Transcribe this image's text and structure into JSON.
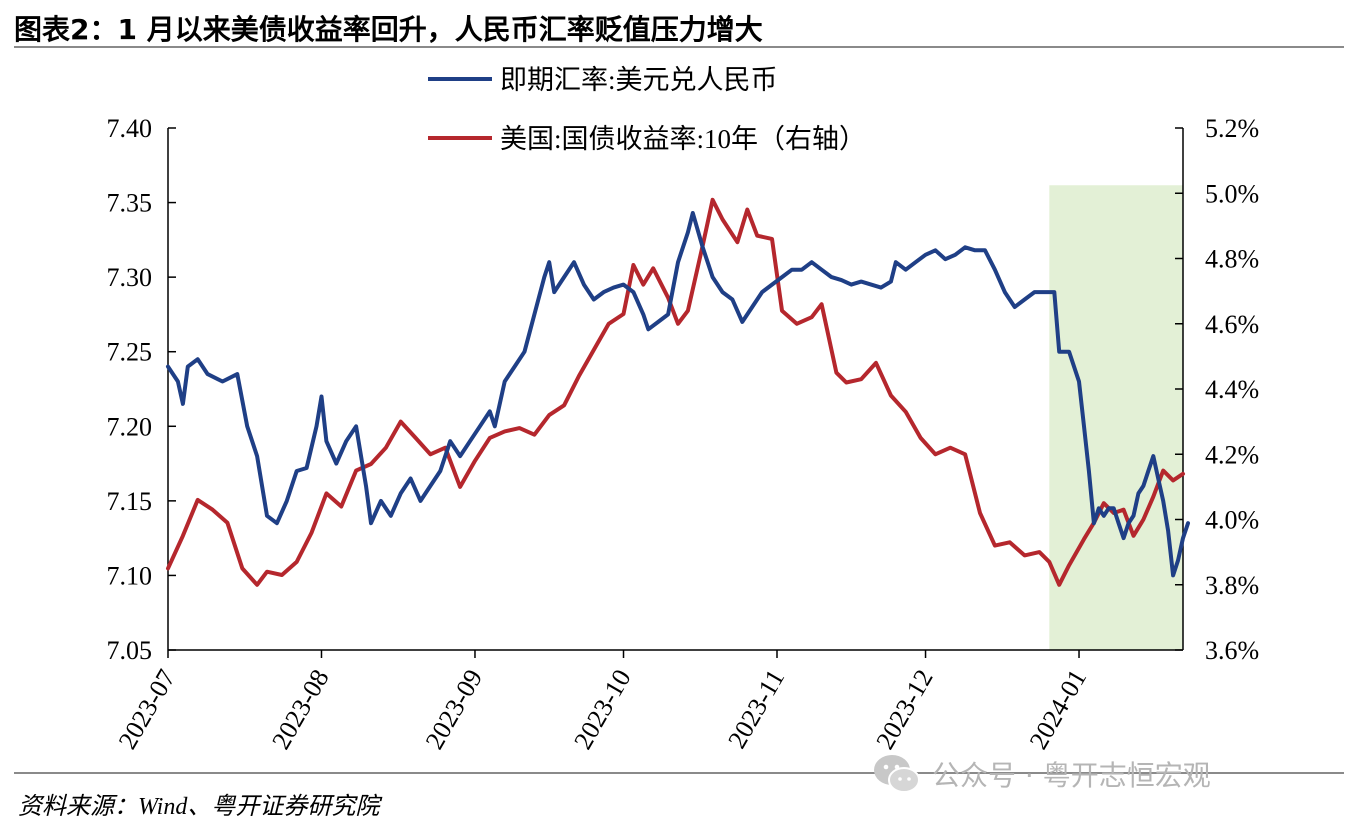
{
  "figure_title": "图表2：1 月以来美债收益率回升，人民币汇率贬值压力增大",
  "source_note": "资料来源：Wind、粤开证券研究院",
  "watermark": {
    "icon": "wechat-icon",
    "text": "公众号 · 粤开志恒宏观"
  },
  "colors": {
    "cny": "#1f3f86",
    "ust": "#b5272d",
    "highlight": "#e3f0d6",
    "axis": "#000000"
  },
  "chart_data": {
    "type": "line",
    "x_type": "date",
    "x_tick_labels": [
      "2023-07",
      "2023-08",
      "2023-09",
      "2023-10",
      "2023-11",
      "2023-12",
      "2024-01"
    ],
    "x_range": [
      "2023-07-01",
      "2024-01-22"
    ],
    "y_left": {
      "range": [
        7.05,
        7.4
      ],
      "ticks": [
        "7.05",
        "7.10",
        "7.15",
        "7.20",
        "7.25",
        "7.30",
        "7.35",
        "7.40"
      ]
    },
    "y_right": {
      "range": [
        3.6,
        5.2
      ],
      "unit": "%",
      "ticks": [
        "3.6%",
        "3.8%",
        "4.0%",
        "4.2%",
        "4.4%",
        "4.6%",
        "4.8%",
        "5.0%",
        "5.2%"
      ]
    },
    "highlight_range": [
      "2023-12-26",
      "2024-01-22"
    ],
    "legend": [
      "即期汇率:美元兑人民币",
      "美国:国债收益率:10年（右轴）"
    ],
    "series": [
      {
        "name": "即期汇率:美元兑人民币",
        "axis": "left",
        "points": [
          [
            "2023-07-01",
            7.24
          ],
          [
            "2023-07-03",
            7.23
          ],
          [
            "2023-07-04",
            7.215
          ],
          [
            "2023-07-05",
            7.24
          ],
          [
            "2023-07-07",
            7.245
          ],
          [
            "2023-07-09",
            7.235
          ],
          [
            "2023-07-12",
            7.23
          ],
          [
            "2023-07-15",
            7.235
          ],
          [
            "2023-07-17",
            7.2
          ],
          [
            "2023-07-19",
            7.18
          ],
          [
            "2023-07-21",
            7.14
          ],
          [
            "2023-07-23",
            7.135
          ],
          [
            "2023-07-25",
            7.15
          ],
          [
            "2023-07-27",
            7.17
          ],
          [
            "2023-07-29",
            7.172
          ],
          [
            "2023-07-31",
            7.2
          ],
          [
            "2023-08-01",
            7.22
          ],
          [
            "2023-08-02",
            7.19
          ],
          [
            "2023-08-04",
            7.175
          ],
          [
            "2023-08-06",
            7.19
          ],
          [
            "2023-08-08",
            7.2
          ],
          [
            "2023-08-10",
            7.16
          ],
          [
            "2023-08-11",
            7.135
          ],
          [
            "2023-08-13",
            7.15
          ],
          [
            "2023-08-15",
            7.14
          ],
          [
            "2023-08-17",
            7.155
          ],
          [
            "2023-08-19",
            7.165
          ],
          [
            "2023-08-21",
            7.15
          ],
          [
            "2023-08-23",
            7.16
          ],
          [
            "2023-08-25",
            7.17
          ],
          [
            "2023-08-27",
            7.19
          ],
          [
            "2023-08-29",
            7.18
          ],
          [
            "2023-08-31",
            7.19
          ],
          [
            "2023-09-02",
            7.2
          ],
          [
            "2023-09-04",
            7.21
          ],
          [
            "2023-09-05",
            7.2
          ],
          [
            "2023-09-07",
            7.23
          ],
          [
            "2023-09-09",
            7.24
          ],
          [
            "2023-09-11",
            7.25
          ],
          [
            "2023-09-13",
            7.275
          ],
          [
            "2023-09-15",
            7.3
          ],
          [
            "2023-09-16",
            7.31
          ],
          [
            "2023-09-17",
            7.29
          ],
          [
            "2023-09-19",
            7.3
          ],
          [
            "2023-09-21",
            7.31
          ],
          [
            "2023-09-23",
            7.295
          ],
          [
            "2023-09-25",
            7.285
          ],
          [
            "2023-09-27",
            7.29
          ],
          [
            "2023-09-29",
            7.293
          ],
          [
            "2023-10-01",
            7.295
          ],
          [
            "2023-10-03",
            7.29
          ],
          [
            "2023-10-05",
            7.275
          ],
          [
            "2023-10-06",
            7.265
          ],
          [
            "2023-10-08",
            7.27
          ],
          [
            "2023-10-10",
            7.275
          ],
          [
            "2023-10-12",
            7.31
          ],
          [
            "2023-10-14",
            7.33
          ],
          [
            "2023-10-15",
            7.343
          ],
          [
            "2023-10-17",
            7.32
          ],
          [
            "2023-10-19",
            7.3
          ],
          [
            "2023-10-21",
            7.29
          ],
          [
            "2023-10-23",
            7.285
          ],
          [
            "2023-10-25",
            7.27
          ],
          [
            "2023-10-27",
            7.28
          ],
          [
            "2023-10-29",
            7.29
          ],
          [
            "2023-10-31",
            7.295
          ],
          [
            "2023-11-02",
            7.3
          ],
          [
            "2023-11-04",
            7.305
          ],
          [
            "2023-11-06",
            7.305
          ],
          [
            "2023-11-08",
            7.31
          ],
          [
            "2023-11-10",
            7.305
          ],
          [
            "2023-11-12",
            7.3
          ],
          [
            "2023-11-14",
            7.298
          ],
          [
            "2023-11-16",
            7.295
          ],
          [
            "2023-11-18",
            7.297
          ],
          [
            "2023-11-20",
            7.295
          ],
          [
            "2023-11-22",
            7.293
          ],
          [
            "2023-11-24",
            7.297
          ],
          [
            "2023-11-25",
            7.31
          ],
          [
            "2023-11-27",
            7.305
          ],
          [
            "2023-11-29",
            7.31
          ],
          [
            "2023-12-01",
            7.315
          ],
          [
            "2023-12-03",
            7.318
          ],
          [
            "2023-12-05",
            7.312
          ],
          [
            "2023-12-07",
            7.315
          ],
          [
            "2023-12-09",
            7.32
          ],
          [
            "2023-12-11",
            7.318
          ],
          [
            "2023-12-13",
            7.318
          ],
          [
            "2023-12-15",
            7.305
          ],
          [
            "2023-12-17",
            7.29
          ],
          [
            "2023-12-19",
            7.28
          ],
          [
            "2023-12-21",
            7.285
          ],
          [
            "2023-12-23",
            7.29
          ],
          [
            "2023-12-25",
            7.29
          ],
          [
            "2023-12-27",
            7.29
          ],
          [
            "2023-12-28",
            7.25
          ],
          [
            "2023-12-30",
            7.25
          ],
          [
            "2024-01-01",
            7.23
          ],
          [
            "2024-01-02",
            7.2
          ],
          [
            "2024-01-03",
            7.17
          ],
          [
            "2024-01-04",
            7.135
          ],
          [
            "2024-01-05",
            7.145
          ],
          [
            "2024-01-06",
            7.14
          ],
          [
            "2024-01-07",
            7.145
          ],
          [
            "2024-01-08",
            7.145
          ],
          [
            "2024-01-09",
            7.135
          ],
          [
            "2024-01-10",
            7.125
          ],
          [
            "2024-01-11",
            7.135
          ],
          [
            "2024-01-12",
            7.14
          ],
          [
            "2024-01-13",
            7.155
          ],
          [
            "2024-01-14",
            7.16
          ],
          [
            "2024-01-15",
            7.17
          ],
          [
            "2024-01-16",
            7.18
          ],
          [
            "2024-01-17",
            7.165
          ],
          [
            "2024-01-18",
            7.15
          ],
          [
            "2024-01-19",
            7.13
          ],
          [
            "2024-01-20",
            7.1
          ],
          [
            "2024-01-21",
            7.11
          ],
          [
            "2024-01-22",
            7.125
          ],
          [
            "2024-01-23",
            7.135
          ]
        ]
      },
      {
        "name": "美国:国债收益率:10年（右轴）",
        "axis": "right",
        "points": [
          [
            "2023-07-01",
            3.85
          ],
          [
            "2023-07-04",
            3.95
          ],
          [
            "2023-07-07",
            4.06
          ],
          [
            "2023-07-10",
            4.03
          ],
          [
            "2023-07-13",
            3.99
          ],
          [
            "2023-07-16",
            3.85
          ],
          [
            "2023-07-19",
            3.8
          ],
          [
            "2023-07-21",
            3.84
          ],
          [
            "2023-07-24",
            3.83
          ],
          [
            "2023-07-27",
            3.87
          ],
          [
            "2023-07-30",
            3.96
          ],
          [
            "2023-08-02",
            4.08
          ],
          [
            "2023-08-05",
            4.04
          ],
          [
            "2023-08-08",
            4.15
          ],
          [
            "2023-08-11",
            4.17
          ],
          [
            "2023-08-14",
            4.22
          ],
          [
            "2023-08-17",
            4.3
          ],
          [
            "2023-08-20",
            4.25
          ],
          [
            "2023-08-23",
            4.2
          ],
          [
            "2023-08-26",
            4.22
          ],
          [
            "2023-08-29",
            4.1
          ],
          [
            "2023-09-01",
            4.18
          ],
          [
            "2023-09-04",
            4.25
          ],
          [
            "2023-09-07",
            4.27
          ],
          [
            "2023-09-10",
            4.28
          ],
          [
            "2023-09-13",
            4.26
          ],
          [
            "2023-09-16",
            4.32
          ],
          [
            "2023-09-19",
            4.35
          ],
          [
            "2023-09-22",
            4.44
          ],
          [
            "2023-09-25",
            4.52
          ],
          [
            "2023-09-28",
            4.6
          ],
          [
            "2023-10-01",
            4.63
          ],
          [
            "2023-10-03",
            4.78
          ],
          [
            "2023-10-05",
            4.72
          ],
          [
            "2023-10-07",
            4.77
          ],
          [
            "2023-10-10",
            4.68
          ],
          [
            "2023-10-12",
            4.6
          ],
          [
            "2023-10-14",
            4.64
          ],
          [
            "2023-10-17",
            4.84
          ],
          [
            "2023-10-19",
            4.98
          ],
          [
            "2023-10-21",
            4.92
          ],
          [
            "2023-10-24",
            4.85
          ],
          [
            "2023-10-26",
            4.95
          ],
          [
            "2023-10-28",
            4.87
          ],
          [
            "2023-10-31",
            4.86
          ],
          [
            "2023-11-02",
            4.64
          ],
          [
            "2023-11-05",
            4.6
          ],
          [
            "2023-11-08",
            4.62
          ],
          [
            "2023-11-10",
            4.66
          ],
          [
            "2023-11-13",
            4.45
          ],
          [
            "2023-11-15",
            4.42
          ],
          [
            "2023-11-18",
            4.43
          ],
          [
            "2023-11-21",
            4.48
          ],
          [
            "2023-11-24",
            4.38
          ],
          [
            "2023-11-27",
            4.33
          ],
          [
            "2023-11-30",
            4.25
          ],
          [
            "2023-12-03",
            4.2
          ],
          [
            "2023-12-06",
            4.22
          ],
          [
            "2023-12-09",
            4.2
          ],
          [
            "2023-12-12",
            4.02
          ],
          [
            "2023-12-15",
            3.92
          ],
          [
            "2023-12-18",
            3.93
          ],
          [
            "2023-12-21",
            3.89
          ],
          [
            "2023-12-24",
            3.9
          ],
          [
            "2023-12-26",
            3.87
          ],
          [
            "2023-12-28",
            3.8
          ],
          [
            "2023-12-30",
            3.86
          ],
          [
            "2024-01-02",
            3.94
          ],
          [
            "2024-01-04",
            3.99
          ],
          [
            "2024-01-06",
            4.05
          ],
          [
            "2024-01-08",
            4.02
          ],
          [
            "2024-01-10",
            4.03
          ],
          [
            "2024-01-12",
            3.95
          ],
          [
            "2024-01-14",
            4.0
          ],
          [
            "2024-01-16",
            4.07
          ],
          [
            "2024-01-18",
            4.15
          ],
          [
            "2024-01-20",
            4.12
          ],
          [
            "2024-01-22",
            4.14
          ]
        ]
      }
    ]
  }
}
